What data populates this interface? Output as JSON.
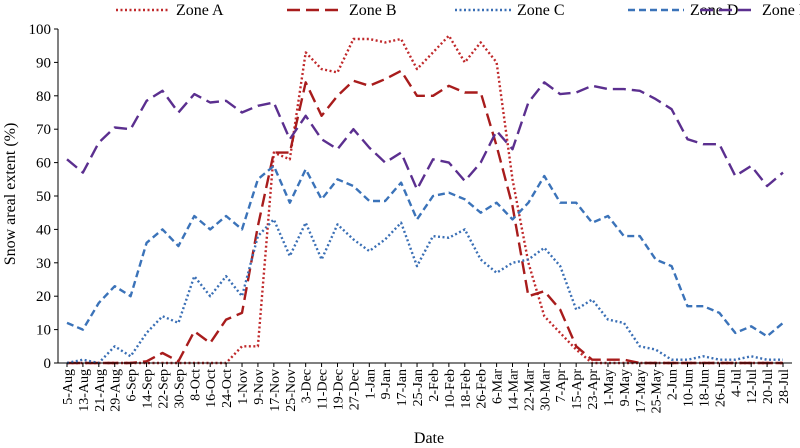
{
  "chart_data": {
    "type": "line",
    "title": "",
    "xlabel": "Date",
    "ylabel": "Snow areal extent (%)",
    "ylim": [
      0,
      100
    ],
    "yticks": [
      0,
      10,
      20,
      30,
      40,
      50,
      60,
      70,
      80,
      90,
      100
    ],
    "grid": false,
    "legend_position": "top",
    "x": [
      "5-Aug",
      "13-Aug",
      "21-Aug",
      "29-Aug",
      "6-Sep",
      "14-Sep",
      "22-Sep",
      "30-Sep",
      "8-Oct",
      "16-Oct",
      "24-Oct",
      "1-Nov",
      "9-Nov",
      "17-Nov",
      "25-Nov",
      "3-Dec",
      "11-Dec",
      "19-Dec",
      "27-Dec",
      "1-Jan",
      "9-Jan",
      "17-Jan",
      "25-Jan",
      "2-Feb",
      "10-Feb",
      "18-Feb",
      "26-Feb",
      "6-Mar",
      "14-Mar",
      "22-Mar",
      "30-Mar",
      "7-Apr",
      "15-Apr",
      "23-Apr",
      "1-May",
      "9-May",
      "17-May",
      "25-May",
      "2-Jun",
      "10-Jun",
      "18-Jun",
      "26-Jun",
      "4-Jul",
      "12-Jul",
      "20-Jul",
      "28-Jul"
    ],
    "series": [
      {
        "name": "Zone A",
        "color": "#c0292b",
        "dash": "dotted",
        "values": [
          0,
          0,
          0,
          0,
          0,
          0,
          0,
          0,
          0,
          0,
          0,
          5,
          5,
          63,
          61,
          93,
          88,
          87,
          97,
          97,
          96,
          97,
          88,
          93,
          98,
          90,
          96,
          90,
          55,
          30,
          14,
          9,
          4,
          0,
          0,
          0,
          0,
          0,
          0,
          0,
          0,
          0,
          0,
          0,
          0,
          0
        ]
      },
      {
        "name": "Zone B",
        "color": "#a81c1c",
        "dash": "longdash",
        "values": [
          0,
          0,
          0,
          0,
          0,
          0.5,
          3,
          0.5,
          9.5,
          6,
          13,
          15,
          41,
          63,
          63,
          84,
          74,
          80,
          84.5,
          83,
          85,
          87.5,
          80,
          80,
          83,
          81,
          81,
          65,
          47,
          20,
          21.5,
          16,
          5,
          1,
          1,
          1,
          0,
          0,
          0,
          0,
          0,
          0,
          0,
          0,
          0,
          0
        ]
      },
      {
        "name": "Zone C",
        "color": "#3a6fb5",
        "dash": "dotted",
        "values": [
          0,
          1,
          0,
          5,
          2,
          9,
          14,
          12,
          26,
          20,
          26,
          20,
          38,
          43,
          32,
          42,
          31,
          41.5,
          37,
          33.5,
          37,
          42,
          29,
          38,
          37.5,
          40,
          31,
          27,
          30,
          31,
          34.5,
          29,
          16,
          19,
          13,
          12,
          5,
          4,
          1,
          1,
          2,
          1,
          1,
          2,
          1,
          1
        ]
      },
      {
        "name": "Zone D",
        "color": "#3b73b9",
        "dash": "dashed",
        "values": [
          12,
          10,
          18,
          23,
          20,
          36,
          40,
          35,
          44,
          40,
          44,
          40,
          55,
          59,
          48,
          58,
          49,
          55,
          53,
          48.5,
          48.5,
          54,
          43,
          50,
          51,
          49,
          45,
          48,
          43,
          48,
          56,
          48,
          48,
          42,
          44,
          38,
          38,
          31,
          29,
          17,
          17,
          15,
          9,
          11,
          8,
          12
        ]
      },
      {
        "name": "Zone E",
        "color": "#5b2f8f",
        "dash": "longdash",
        "values": [
          61,
          57,
          66,
          70.5,
          70,
          78.5,
          81.5,
          75,
          80.5,
          78,
          78.5,
          75,
          77,
          78,
          67,
          74,
          67,
          64,
          70,
          64.5,
          60,
          63,
          52,
          61,
          60,
          54.5,
          60,
          69.5,
          64,
          78,
          84,
          80.5,
          81,
          83,
          82,
          82,
          81.5,
          79,
          76,
          67,
          65.5,
          65.5,
          56,
          59,
          53,
          57
        ]
      }
    ]
  }
}
